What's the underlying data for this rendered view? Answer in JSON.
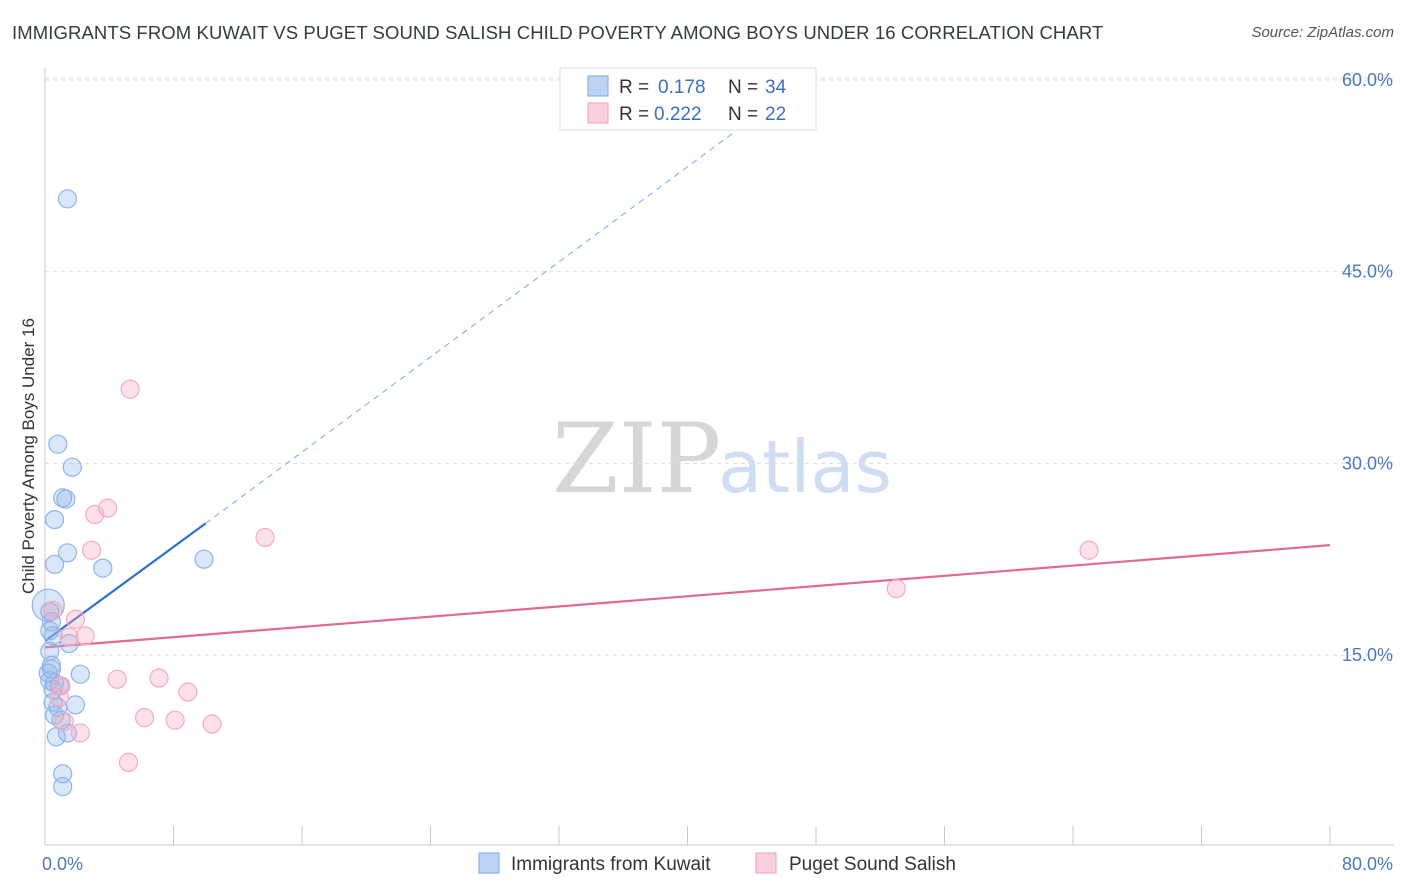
{
  "title": "IMMIGRANTS FROM KUWAIT VS PUGET SOUND SALISH CHILD POVERTY AMONG BOYS UNDER 16 CORRELATION CHART",
  "source": "Source: ZipAtlas.com",
  "watermark": {
    "zip": "ZIP",
    "atlas": "atlas"
  },
  "legend_top": [
    {
      "r_label": "R =",
      "r_value": "0.178",
      "n_label": "N =",
      "n_value": "34"
    },
    {
      "r_label": "R =",
      "r_value": "0.222",
      "n_label": "N =",
      "n_value": "22"
    }
  ],
  "chart_data": {
    "type": "scatter",
    "title": "IMMIGRANTS FROM KUWAIT VS PUGET SOUND SALISH CHILD POVERTY AMONG BOYS UNDER 16 CORRELATION CHART",
    "xlabel": "",
    "ylabel": "Child Poverty Among Boys Under 16",
    "xlim": [
      0,
      80
    ],
    "ylim": [
      0,
      62
    ],
    "x_tick_labels": [
      "0.0%",
      "80.0%"
    ],
    "y_ticks": [
      15,
      30,
      45,
      60
    ],
    "y_tick_labels": [
      "15.0%",
      "30.0%",
      "45.0%",
      "60.0%"
    ],
    "grid": true,
    "series": [
      {
        "name": "Immigrants from Kuwait",
        "color": "#8db4e8",
        "line_color": "#2f6fd0",
        "r": "0.178",
        "n": "34",
        "trend": {
          "x_start": 0,
          "y_start": 16.1,
          "x_solid_end": 10.0,
          "y_solid_end": 25.3,
          "x_dash_end": 43,
          "y_dash_end": 56.0
        },
        "points": [
          [
            0.2,
            18.9
          ],
          [
            0.3,
            18.4
          ],
          [
            0.4,
            17.6
          ],
          [
            0.5,
            16.5
          ],
          [
            0.3,
            15.3
          ],
          [
            0.4,
            14.2
          ],
          [
            0.2,
            13.6
          ],
          [
            0.3,
            13.0
          ],
          [
            0.5,
            12.3
          ],
          [
            0.6,
            12.8
          ],
          [
            0.5,
            11.3
          ],
          [
            0.8,
            10.9
          ],
          [
            0.6,
            10.3
          ],
          [
            1.0,
            9.9
          ],
          [
            0.7,
            8.6
          ],
          [
            1.4,
            8.9
          ],
          [
            1.1,
            5.7
          ],
          [
            1.1,
            4.7
          ],
          [
            0.8,
            31.5
          ],
          [
            1.7,
            29.7
          ],
          [
            1.1,
            27.3
          ],
          [
            1.3,
            27.2
          ],
          [
            0.6,
            25.6
          ],
          [
            1.4,
            23.0
          ],
          [
            0.6,
            22.1
          ],
          [
            3.6,
            21.8
          ],
          [
            1.5,
            15.9
          ],
          [
            2.2,
            13.5
          ],
          [
            1.9,
            11.1
          ],
          [
            1.4,
            50.7
          ],
          [
            9.9,
            22.5
          ],
          [
            0.3,
            16.9
          ],
          [
            0.9,
            12.6
          ],
          [
            0.4,
            13.9
          ]
        ]
      },
      {
        "name": "Puget Sound Salish",
        "color": "#f3aac2",
        "line_color": "#e06a93",
        "r": "0.222",
        "n": "22",
        "trend": {
          "x_start": 0,
          "y_start": 15.6,
          "x_end": 80,
          "y_end": 23.6
        },
        "points": [
          [
            5.3,
            35.8
          ],
          [
            3.1,
            26.0
          ],
          [
            3.9,
            26.5
          ],
          [
            2.9,
            23.2
          ],
          [
            13.7,
            24.2
          ],
          [
            1.9,
            17.8
          ],
          [
            0.5,
            18.5
          ],
          [
            1.5,
            16.4
          ],
          [
            2.5,
            16.5
          ],
          [
            4.5,
            13.1
          ],
          [
            7.1,
            13.2
          ],
          [
            8.9,
            12.1
          ],
          [
            1.0,
            12.6
          ],
          [
            1.2,
            9.8
          ],
          [
            6.2,
            10.1
          ],
          [
            8.1,
            9.9
          ],
          [
            10.4,
            9.6
          ],
          [
            2.2,
            8.9
          ],
          [
            5.2,
            6.6
          ],
          [
            65.0,
            23.2
          ],
          [
            53.0,
            20.2
          ],
          [
            0.9,
            11.7
          ]
        ]
      }
    ]
  }
}
